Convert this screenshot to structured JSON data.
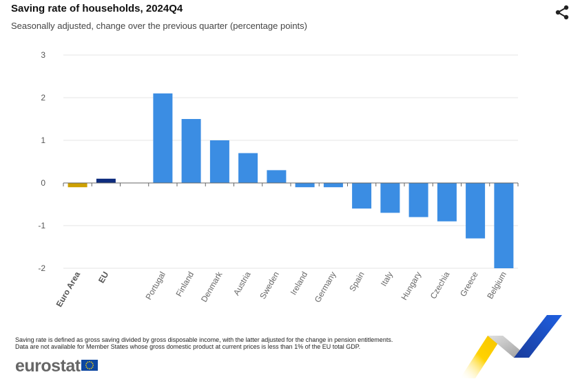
{
  "header": {
    "title": "Saving rate of households, 2024Q4",
    "subtitle": "Seasonally adjusted, change over the previous quarter (percentage points)"
  },
  "icons": {
    "share": "share-icon",
    "flag": "eu-flag-icon",
    "ribbon": "eurostat-ribbon-logo"
  },
  "footnotes": {
    "line1": "Saving rate is defined as gross saving divided by gross disposable income, with the latter adjusted for the change in pension entitlements.",
    "line2": "Data are not available for Member States whose gross domestic product at current prices is less than 1% of the EU total GDP."
  },
  "brand": {
    "name": "eurostat"
  },
  "colors": {
    "euro_area": "#cda000",
    "eu": "#0e2c7e",
    "country": "#3b8de3",
    "grid": "#e6e6e6",
    "axis": "#666666"
  },
  "chart_data": {
    "type": "bar",
    "title": "Saving rate of households, 2024Q4",
    "subtitle": "Seasonally adjusted, change over the previous quarter (percentage points)",
    "ylim": [
      -2,
      3
    ],
    "yticks": [
      -2,
      -1,
      0,
      1,
      2,
      3
    ],
    "grid": true,
    "categories": [
      "Euro Area",
      "EU",
      "",
      "Portugal",
      "Finland",
      "Denmark",
      "Austria",
      "Sweden",
      "Ireland",
      "Germany",
      "Spain",
      "Italy",
      "Hungary",
      "Czechia",
      "Greece",
      "Belgium"
    ],
    "values": [
      -0.1,
      0.1,
      null,
      2.1,
      1.5,
      1.0,
      0.7,
      0.3,
      -0.1,
      -0.1,
      -0.6,
      -0.7,
      -0.8,
      -0.9,
      -1.3,
      -2.0
    ],
    "highlight": {
      "Euro Area": "euro_area",
      "EU": "eu"
    },
    "bold_categories": [
      "Euro Area",
      "EU"
    ]
  }
}
